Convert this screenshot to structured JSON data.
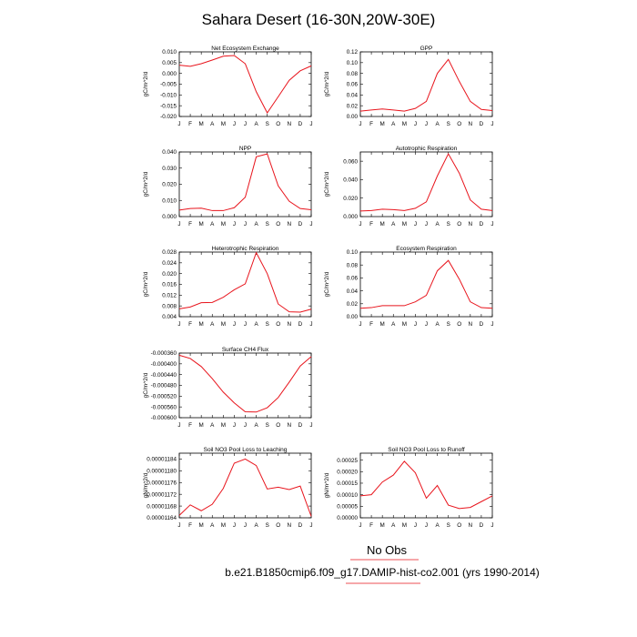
{
  "page": {
    "title": "Sahara Desert (16-30N,20W-30E)",
    "obs_label": "No Obs",
    "case_label": "b.e21.B1850cmip6.f09_g17.DAMIP-hist-co2.001 (yrs 1990-2014)",
    "line_color": "#e8141c"
  },
  "chart_data": [
    {
      "type": "line",
      "title": "Net Ecosystem Exchange",
      "ylabel": "gC/m^2/d",
      "x": [
        "J",
        "F",
        "M",
        "A",
        "M",
        "J",
        "J",
        "A",
        "S",
        "O",
        "N",
        "D",
        "J"
      ],
      "ylim": [
        -0.02,
        0.01
      ],
      "yticks": [
        "0.010",
        "0.005",
        "0.000",
        "-0.005",
        "-0.010",
        "-0.015",
        "-0.020"
      ],
      "series": [
        {
          "values": [
            0.0038,
            0.0033,
            0.0045,
            0.0062,
            0.008,
            0.0083,
            0.0045,
            -0.0085,
            -0.0183,
            -0.0108,
            -0.0032,
            0.0012,
            0.0035
          ]
        }
      ]
    },
    {
      "type": "line",
      "title": "GPP",
      "ylabel": "gC/m^2/d",
      "x": [
        "J",
        "F",
        "M",
        "A",
        "M",
        "J",
        "J",
        "A",
        "S",
        "O",
        "N",
        "D",
        "J"
      ],
      "ylim": [
        0.0,
        0.12
      ],
      "yticks": [
        "0.12",
        "0.10",
        "0.08",
        "0.06",
        "0.04",
        "0.02",
        "0.00"
      ],
      "series": [
        {
          "values": [
            0.01,
            0.012,
            0.014,
            0.012,
            0.01,
            0.015,
            0.028,
            0.08,
            0.106,
            0.065,
            0.028,
            0.013,
            0.011
          ]
        }
      ]
    },
    {
      "type": "line",
      "title": "NPP",
      "ylabel": "gC/m^2/d",
      "x": [
        "J",
        "F",
        "M",
        "A",
        "M",
        "J",
        "J",
        "A",
        "S",
        "O",
        "N",
        "D",
        "J"
      ],
      "ylim": [
        0.0,
        0.04
      ],
      "yticks": [
        "0.040",
        "0.030",
        "0.020",
        "0.010",
        "0.000"
      ],
      "series": [
        {
          "values": [
            0.004,
            0.005,
            0.0052,
            0.0037,
            0.0037,
            0.0055,
            0.012,
            0.037,
            0.0388,
            0.019,
            0.0095,
            0.005,
            0.0042
          ]
        }
      ]
    },
    {
      "type": "line",
      "title": "Autotrophic Respiration",
      "ylabel": "gC/m^2/d",
      "x": [
        "J",
        "F",
        "M",
        "A",
        "M",
        "J",
        "J",
        "A",
        "S",
        "O",
        "N",
        "D",
        "J"
      ],
      "ylim": [
        0.0,
        0.07
      ],
      "yticks": [
        "0.060",
        "0.040",
        "0.020",
        "0.000"
      ],
      "series": [
        {
          "values": [
            0.006,
            0.0065,
            0.008,
            0.0075,
            0.0065,
            0.009,
            0.016,
            0.044,
            0.068,
            0.047,
            0.018,
            0.008,
            0.0065
          ]
        }
      ]
    },
    {
      "type": "line",
      "title": "Heterotrophic Respiration",
      "ylabel": "gC/m^2/d",
      "x": [
        "J",
        "F",
        "M",
        "A",
        "M",
        "J",
        "J",
        "A",
        "S",
        "O",
        "N",
        "D",
        "J"
      ],
      "ylim": [
        0.004,
        0.028
      ],
      "yticks": [
        "0.028",
        "0.024",
        "0.020",
        "0.016",
        "0.012",
        "0.008",
        "0.004"
      ],
      "series": [
        {
          "values": [
            0.0069,
            0.0076,
            0.0092,
            0.0093,
            0.0112,
            0.014,
            0.0162,
            0.0278,
            0.02,
            0.0087,
            0.0058,
            0.0057,
            0.0068
          ]
        }
      ]
    },
    {
      "type": "line",
      "title": "Ecosystem Respiration",
      "ylabel": "gC/m^2/d",
      "x": [
        "J",
        "F",
        "M",
        "A",
        "M",
        "J",
        "J",
        "A",
        "S",
        "O",
        "N",
        "D",
        "J"
      ],
      "ylim": [
        0.0,
        0.1
      ],
      "yticks": [
        "0.10",
        "0.08",
        "0.06",
        "0.04",
        "0.02",
        "0.00"
      ],
      "series": [
        {
          "values": [
            0.013,
            0.014,
            0.017,
            0.017,
            0.017,
            0.023,
            0.033,
            0.071,
            0.087,
            0.058,
            0.023,
            0.014,
            0.013
          ]
        }
      ]
    },
    {
      "type": "line",
      "title": "Surface CH4 Flux",
      "ylabel": "gC/m^2/d",
      "x": [
        "J",
        "F",
        "M",
        "A",
        "M",
        "J",
        "J",
        "A",
        "S",
        "O",
        "N",
        "D",
        "J"
      ],
      "ylim": [
        -0.0006,
        -0.00036
      ],
      "yticks": [
        "-0.000360",
        "-0.000400",
        "-0.000440",
        "-0.000480",
        "-0.000520",
        "-0.000560",
        "-0.000600"
      ],
      "series": [
        {
          "values": [
            -0.000368,
            -0.00038,
            -0.00041,
            -0.000455,
            -0.000505,
            -0.000545,
            -0.000578,
            -0.000579,
            -0.000563,
            -0.000525,
            -0.000468,
            -0.000408,
            -0.000373
          ]
        }
      ]
    },
    {
      "type": "line",
      "title": "Soil NO3 Pool Loss to Leaching",
      "ylabel": "gN/m^2/d",
      "x": [
        "J",
        "F",
        "M",
        "A",
        "M",
        "J",
        "J",
        "A",
        "S",
        "O",
        "N",
        "D",
        "J"
      ],
      "ylim": [
        1.164e-05,
        1.186e-05
      ],
      "yticks": [
        "0.00001184",
        "0.00001180",
        "0.00001176",
        "0.00001172",
        "0.00001168",
        "0.00001164"
      ],
      "series": [
        {
          "values": [
            1.1648e-05,
            1.1684e-05,
            1.1664e-05,
            1.1686e-05,
            1.174e-05,
            1.1826e-05,
            1.184e-05,
            1.1818e-05,
            1.1738e-05,
            1.1744e-05,
            1.1736e-05,
            1.1748e-05,
            1.1645e-05
          ]
        }
      ]
    },
    {
      "type": "line",
      "title": "Soil NO3 Pool Loss to Runoff",
      "ylabel": "gN/m^2/d",
      "x": [
        "J",
        "F",
        "M",
        "A",
        "M",
        "J",
        "J",
        "A",
        "S",
        "O",
        "N",
        "D",
        "J"
      ],
      "ylim": [
        0.0,
        0.00028
      ],
      "yticks": [
        "0.00025",
        "0.00020",
        "0.00015",
        "0.00010",
        "0.00005",
        "0.00000"
      ],
      "series": [
        {
          "values": [
            9.5e-05,
            0.0001,
            0.000155,
            0.000185,
            0.000245,
            0.000195,
            8.5e-05,
            0.00014,
            5.5e-05,
            4e-05,
            4.5e-05,
            7e-05,
            9.5e-05
          ]
        }
      ]
    }
  ]
}
